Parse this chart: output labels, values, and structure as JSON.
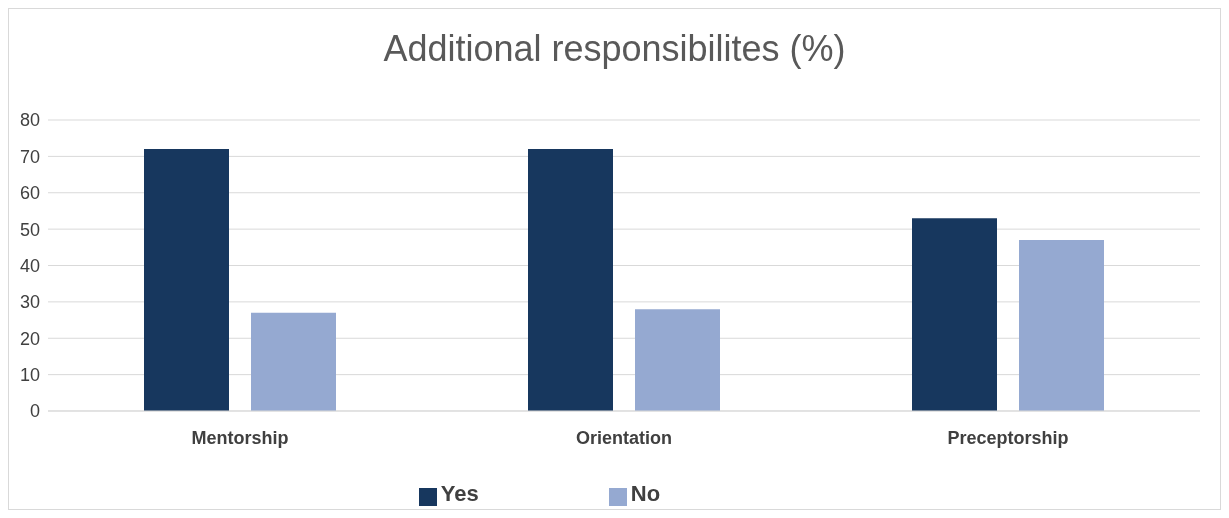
{
  "chart_data": {
    "type": "bar",
    "title": "Additional responsibilites (%)",
    "categories": [
      "Mentorship",
      "Orientation",
      "Preceptorship"
    ],
    "series": [
      {
        "name": "Yes",
        "color": "#17375e",
        "values": [
          72,
          72,
          53
        ]
      },
      {
        "name": "No",
        "color": "#95a9d1",
        "values": [
          27,
          28,
          47
        ]
      }
    ],
    "ylim": [
      0,
      80
    ],
    "yticks": [
      0,
      10,
      20,
      30,
      40,
      50,
      60,
      70,
      80
    ],
    "grid": "y",
    "legend": "bottom"
  }
}
